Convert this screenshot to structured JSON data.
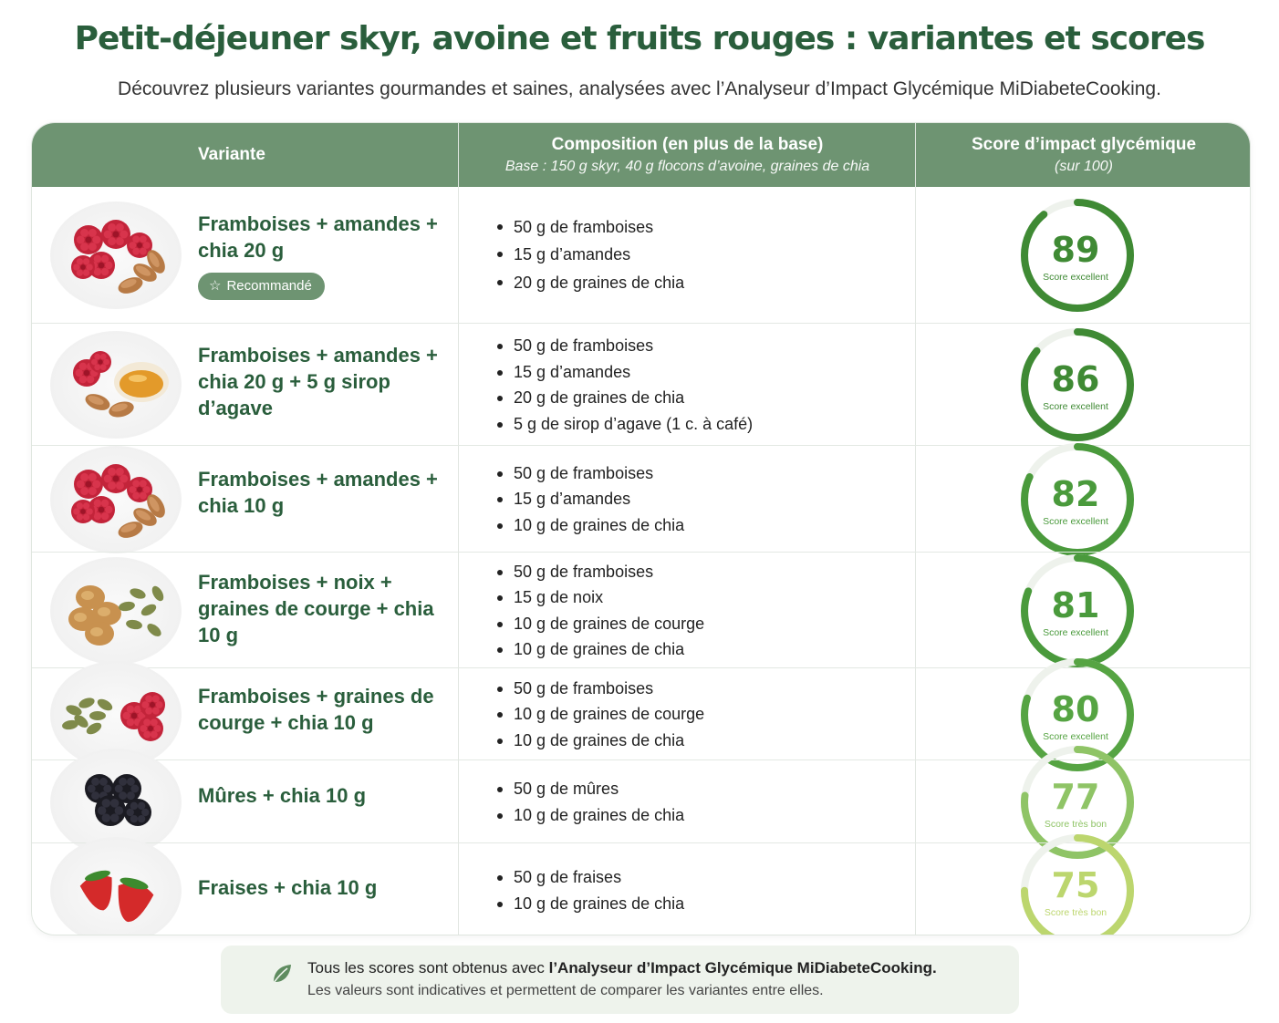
{
  "title": "Petit-déjeuner skyr, avoine et fruits rouges : variantes et scores",
  "subtitle": "Découvrez plusieurs variantes gourmandes et saines, analysées avec l’Analyseur d’Impact Glycémique MiDiabeteCooking.",
  "table": {
    "headers": {
      "variant": "Variante",
      "composition": "Composition (en plus de la base)",
      "composition_sub": "Base : 150 g skyr, 40 g flocons d’avoine, graines de chia",
      "score": "Score d’impact glycémique",
      "score_sub": "(sur 100)"
    },
    "rows": [
      {
        "name": "Framboises + amandes + chia 20 g",
        "badge": "Recommandé",
        "image": "raspberries-almonds",
        "items": [
          "50 g de framboises",
          "15 g d’amandes",
          "20 g de graines de chia"
        ],
        "score": 89,
        "score_label": "Score excellent",
        "color": "#3f8a34"
      },
      {
        "name": "Framboises + amandes + chia 20 g + 5 g sirop d’agave",
        "image": "raspberries-almonds-agave",
        "items": [
          "50 g de framboises",
          "15 g d’amandes",
          "20 g de graines de chia",
          "5 g de sirop d’agave (1 c. à café)"
        ],
        "score": 86,
        "score_label": "Score excellent",
        "color": "#3f8a34"
      },
      {
        "name": "Framboises + amandes + chia 10 g",
        "image": "raspberries-almonds",
        "items": [
          "50 g de framboises",
          "15 g d’amandes",
          "10 g de graines de chia"
        ],
        "score": 82,
        "score_label": "Score excellent",
        "color": "#4a9a3c"
      },
      {
        "name": "Framboises + noix + graines de courge + chia 10 g",
        "image": "walnuts-pumpkin-seeds",
        "items": [
          "50 g de framboises",
          "15 g de noix",
          "10 g de graines de courge",
          "10 g de graines de chia"
        ],
        "score": 81,
        "score_label": "Score excellent",
        "color": "#4a9a3c"
      },
      {
        "name": "Framboises + graines de courge + chia 10 g",
        "image": "pumpkin-seeds-raspberries",
        "items": [
          "50 g de framboises",
          "10 g de graines de courge",
          "10 g de graines de chia"
        ],
        "score": 80,
        "score_label": "Score excellent",
        "color": "#56a443"
      },
      {
        "name": "Mûres + chia 10 g",
        "image": "blackberries",
        "items": [
          "50 g de mûres",
          "10 g de graines de chia"
        ],
        "score": 77,
        "score_label": "Score très bon",
        "color": "#8fc466"
      },
      {
        "name": "Fraises + chia 10 g",
        "image": "strawberries",
        "items": [
          "50 g de fraises",
          "10 g de graines de chia"
        ],
        "score": 75,
        "score_label": "Score très bon",
        "color": "#bcd66e"
      }
    ]
  },
  "footnote": {
    "line1_prefix": "Tous les scores sont obtenus avec ",
    "line1_bold": "l’Analyseur d’Impact Glycémique MiDiabeteCooking.",
    "line2": "Les valeurs sont indicatives et permettent de comparer les variantes entre elles.",
    "icon": "leaf-icon"
  }
}
